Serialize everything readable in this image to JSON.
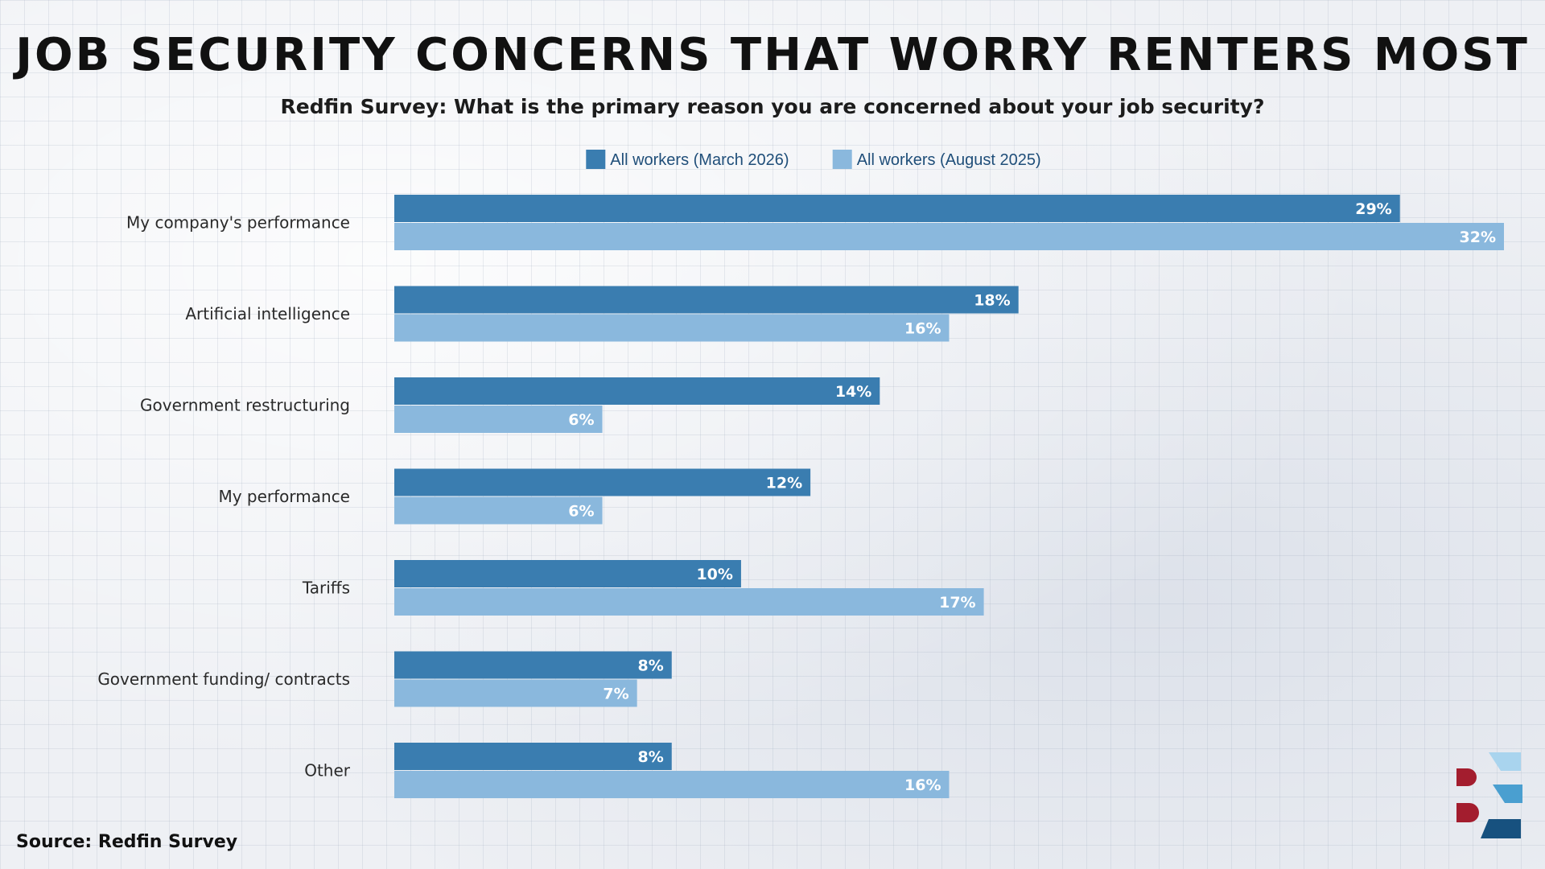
{
  "title": "Job Security Concerns That Worry Renters Most",
  "subtitle": "Redfin Survey: What is the primary reason you are concerned about your job security?",
  "source": "Source: Redfin Survey",
  "colors": {
    "series1": "#3a7db0",
    "series2": "#8ab8dd",
    "label_text": "#ffffff",
    "category_text": "#2a2a2a"
  },
  "chart_data": {
    "type": "bar",
    "orientation": "horizontal",
    "categories": [
      "My company's performance",
      "Artificial intelligence",
      "Government restructuring",
      "My performance",
      "Tariffs",
      "Government funding/ contracts",
      "Other"
    ],
    "series": [
      {
        "name": "All workers (March 2026)",
        "values": [
          29,
          18,
          14,
          12,
          10,
          8,
          8
        ]
      },
      {
        "name": "All workers (August 2025)",
        "values": [
          32,
          16,
          6,
          6,
          17,
          7,
          16
        ]
      }
    ],
    "value_format": "{v}%",
    "xlim": [
      0,
      32
    ],
    "legend_position": "top-center",
    "grid": false
  }
}
